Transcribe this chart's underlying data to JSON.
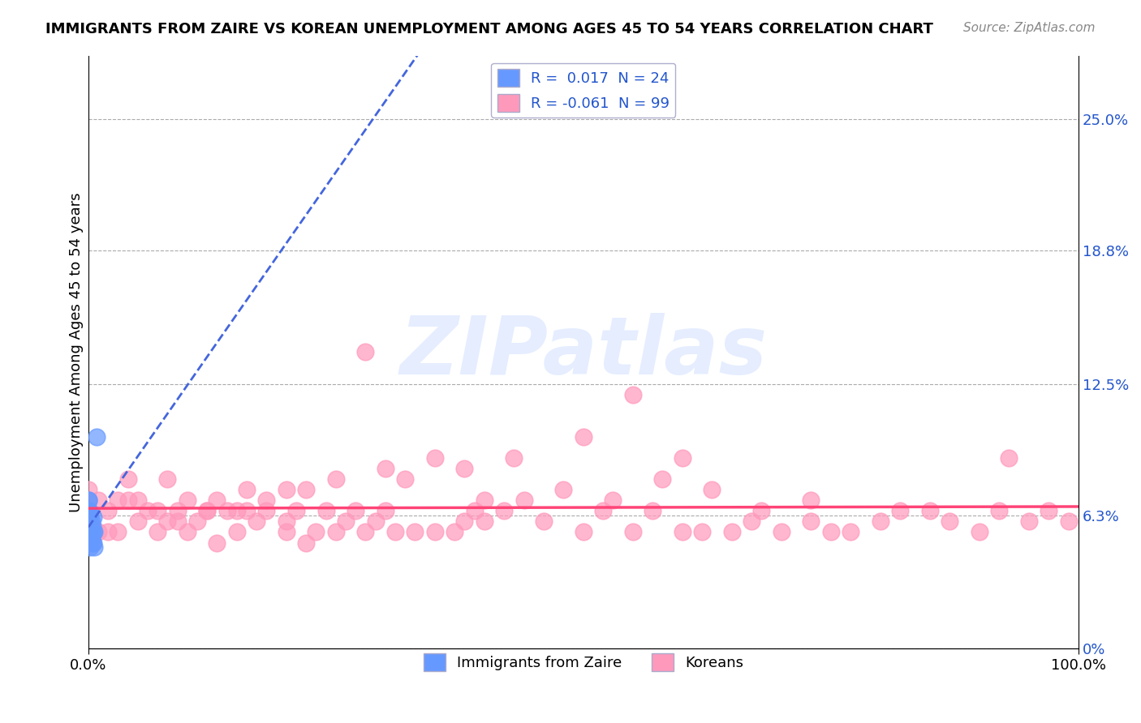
{
  "title": "IMMIGRANTS FROM ZAIRE VS KOREAN UNEMPLOYMENT AMONG AGES 45 TO 54 YEARS CORRELATION CHART",
  "source": "Source: ZipAtlas.com",
  "xlabel": "",
  "ylabel": "Unemployment Among Ages 45 to 54 years",
  "xlim": [
    0.0,
    1.0
  ],
  "ylim": [
    0.0,
    0.28
  ],
  "yticks": [
    0.0,
    0.063,
    0.125,
    0.188,
    0.25
  ],
  "ytick_labels": [
    "0%",
    "6.3%",
    "12.5%",
    "18.8%",
    "25.0%"
  ],
  "xtick_labels": [
    "0.0%",
    "100.0%"
  ],
  "xticks": [
    0.0,
    1.0
  ],
  "legend_R1": "0.017",
  "legend_N1": "24",
  "legend_R2": "-0.061",
  "legend_N2": "99",
  "label1": "Immigrants from Zaire",
  "label2": "Koreans",
  "color_blue": "#6699FF",
  "color_pink": "#FF99BB",
  "trend_blue": "#4466DD",
  "trend_pink": "#FF4477",
  "watermark": "ZIPatlas",
  "watermark_color": "#CCDDFF",
  "background": "#FFFFFF",
  "zaire_x": [
    0.0,
    0.0,
    0.0,
    0.0,
    0.0,
    0.001,
    0.001,
    0.001,
    0.001,
    0.002,
    0.002,
    0.002,
    0.002,
    0.003,
    0.003,
    0.003,
    0.004,
    0.004,
    0.005,
    0.005,
    0.005,
    0.006,
    0.006,
    0.008
  ],
  "zaire_y": [
    0.055,
    0.06,
    0.065,
    0.07,
    0.07,
    0.05,
    0.055,
    0.06,
    0.065,
    0.048,
    0.055,
    0.058,
    0.063,
    0.052,
    0.055,
    0.06,
    0.05,
    0.058,
    0.05,
    0.055,
    0.062,
    0.048,
    0.055,
    0.1
  ],
  "korean_x": [
    0.0,
    0.0,
    0.0,
    0.0,
    0.01,
    0.01,
    0.02,
    0.02,
    0.03,
    0.03,
    0.04,
    0.04,
    0.05,
    0.05,
    0.06,
    0.07,
    0.07,
    0.08,
    0.08,
    0.09,
    0.09,
    0.1,
    0.1,
    0.11,
    0.12,
    0.13,
    0.13,
    0.14,
    0.15,
    0.16,
    0.16,
    0.17,
    0.18,
    0.2,
    0.2,
    0.21,
    0.22,
    0.23,
    0.24,
    0.25,
    0.26,
    0.27,
    0.28,
    0.29,
    0.3,
    0.31,
    0.33,
    0.35,
    0.37,
    0.38,
    0.39,
    0.4,
    0.42,
    0.44,
    0.46,
    0.5,
    0.52,
    0.55,
    0.57,
    0.6,
    0.62,
    0.65,
    0.67,
    0.7,
    0.73,
    0.75,
    0.77,
    0.8,
    0.82,
    0.85,
    0.87,
    0.9,
    0.92,
    0.95,
    0.97,
    0.99,
    0.5,
    0.55,
    0.6,
    0.25,
    0.3,
    0.35,
    0.4,
    0.15,
    0.2,
    0.12,
    0.18,
    0.22,
    0.28,
    0.32,
    0.38,
    0.43,
    0.48,
    0.53,
    0.58,
    0.63,
    0.68,
    0.73,
    0.93
  ],
  "korean_y": [
    0.06,
    0.065,
    0.07,
    0.075,
    0.055,
    0.07,
    0.055,
    0.065,
    0.055,
    0.07,
    0.07,
    0.08,
    0.06,
    0.07,
    0.065,
    0.055,
    0.065,
    0.06,
    0.08,
    0.06,
    0.065,
    0.055,
    0.07,
    0.06,
    0.065,
    0.05,
    0.07,
    0.065,
    0.055,
    0.065,
    0.075,
    0.06,
    0.065,
    0.055,
    0.06,
    0.065,
    0.05,
    0.055,
    0.065,
    0.055,
    0.06,
    0.065,
    0.055,
    0.06,
    0.065,
    0.055,
    0.055,
    0.055,
    0.055,
    0.06,
    0.065,
    0.06,
    0.065,
    0.07,
    0.06,
    0.055,
    0.065,
    0.055,
    0.065,
    0.055,
    0.055,
    0.055,
    0.06,
    0.055,
    0.06,
    0.055,
    0.055,
    0.06,
    0.065,
    0.065,
    0.06,
    0.055,
    0.065,
    0.06,
    0.065,
    0.06,
    0.1,
    0.12,
    0.09,
    0.08,
    0.085,
    0.09,
    0.07,
    0.065,
    0.075,
    0.065,
    0.07,
    0.075,
    0.14,
    0.08,
    0.085,
    0.09,
    0.075,
    0.07,
    0.08,
    0.075,
    0.065,
    0.07,
    0.09
  ]
}
